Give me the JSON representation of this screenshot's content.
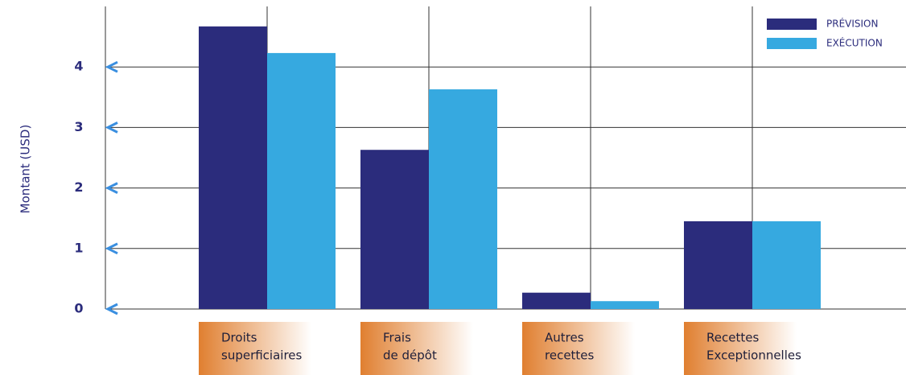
{
  "chart_data": {
    "type": "bar",
    "y_label": "Montant (USD)",
    "categories": [
      [
        "Droits",
        "superficiaires"
      ],
      [
        "Frais",
        "de dépôt"
      ],
      [
        "Autres",
        "recettes"
      ],
      [
        "Recettes",
        "Exceptionnelles"
      ]
    ],
    "series": [
      {
        "name": "PRÉVISION",
        "color": "#2b2c7c",
        "values": [
          4.67,
          2.63,
          0.27,
          1.45
        ]
      },
      {
        "name": "EXÉCUTION",
        "color": "#36a9e0",
        "values": [
          4.23,
          3.63,
          0.13,
          1.45
        ]
      }
    ],
    "ylim": [
      0,
      5
    ],
    "yticks": [
      0,
      1,
      2,
      3,
      4
    ],
    "grid": true
  }
}
